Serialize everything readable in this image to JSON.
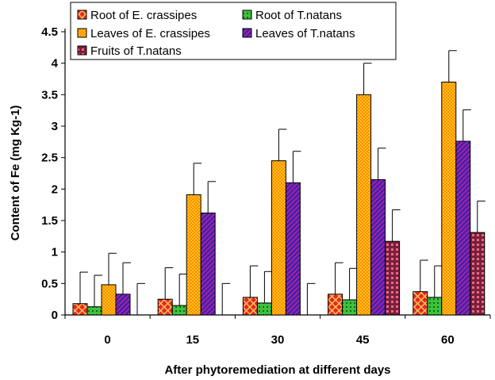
{
  "chart_data": {
    "type": "bar",
    "xlabel": "After phytoremediation at different days",
    "ylabel": "Content of Fe (mg Kg-1)",
    "categories": [
      "0",
      "15",
      "30",
      "45",
      "60"
    ],
    "ylim": [
      0,
      4.5
    ],
    "yticks": [
      "0",
      "0.5",
      "1",
      "1.5",
      "2",
      "2.5",
      "3",
      "3.5",
      "4",
      "4.5"
    ],
    "grid": false,
    "legend_position": "top",
    "series": [
      {
        "name": "Root of E. crassipes",
        "pattern": "red-crosshatch",
        "values": [
          0.18,
          0.25,
          0.28,
          0.33,
          0.37
        ],
        "error": [
          0.5,
          0.5,
          0.5,
          0.5,
          0.5
        ]
      },
      {
        "name": "Root of T.natans",
        "pattern": "green-dots",
        "values": [
          0.13,
          0.15,
          0.19,
          0.24,
          0.28
        ],
        "error": [
          0.5,
          0.5,
          0.5,
          0.5,
          0.5
        ]
      },
      {
        "name": "Leaves of E. crassipes",
        "pattern": "orange-checker",
        "values": [
          0.48,
          1.91,
          2.45,
          3.5,
          3.7
        ],
        "error": [
          0.5,
          0.5,
          0.5,
          0.5,
          0.5
        ]
      },
      {
        "name": "Leaves of T.natans",
        "pattern": "purple-diagonal",
        "values": [
          0.33,
          1.62,
          2.1,
          2.15,
          2.76
        ],
        "error": [
          0.5,
          0.5,
          0.5,
          0.5,
          0.5
        ]
      },
      {
        "name": "Fruits of T.natans",
        "pattern": "maroon-grid",
        "values": [
          0,
          0,
          0,
          1.17,
          1.31
        ],
        "error": [
          0.5,
          0.5,
          0.5,
          0.5,
          0.5
        ]
      }
    ]
  }
}
